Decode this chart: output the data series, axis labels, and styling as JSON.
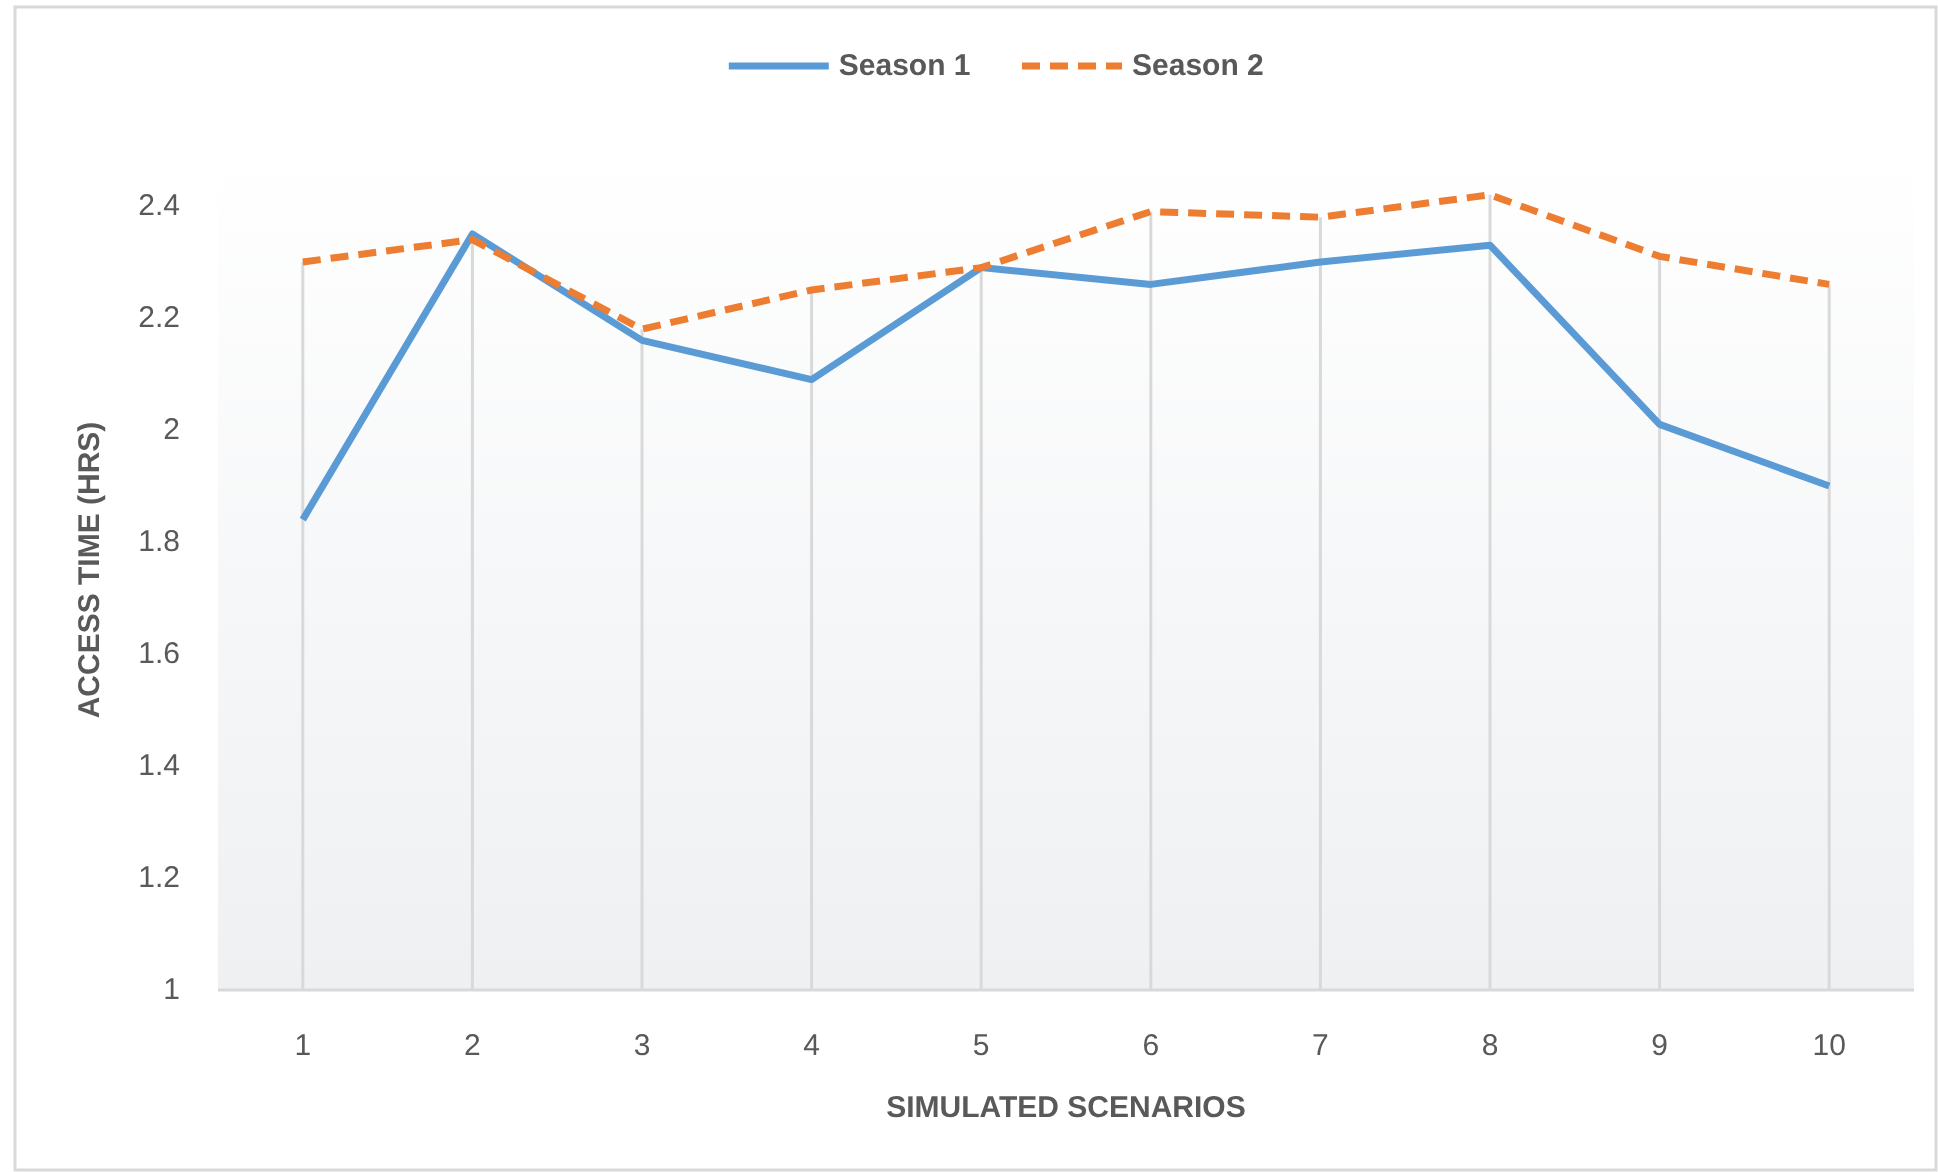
{
  "chart_data": {
    "type": "line",
    "xlabel": "SIMULATED SCENARIOS",
    "ylabel": "ACCESS TIME (HRS)",
    "categories": [
      "1",
      "2",
      "3",
      "4",
      "5",
      "6",
      "7",
      "8",
      "9",
      "10"
    ],
    "series": [
      {
        "name": "Season 1",
        "color": "#5b9bd5",
        "line_style": "solid",
        "values": [
          1.84,
          2.35,
          2.16,
          2.09,
          2.29,
          2.26,
          2.3,
          2.33,
          2.01,
          1.9
        ]
      },
      {
        "name": "Season 2",
        "color": "#ed7d31",
        "line_style": "dashed",
        "values": [
          2.3,
          2.34,
          2.18,
          2.25,
          2.29,
          2.39,
          2.38,
          2.42,
          2.31,
          2.26
        ]
      }
    ],
    "ylim": [
      1,
      2.5
    ],
    "yticks": [
      1,
      1.2,
      1.4,
      1.6,
      1.8,
      2,
      2.2,
      2.4
    ],
    "grid": "x",
    "legend": "top"
  }
}
